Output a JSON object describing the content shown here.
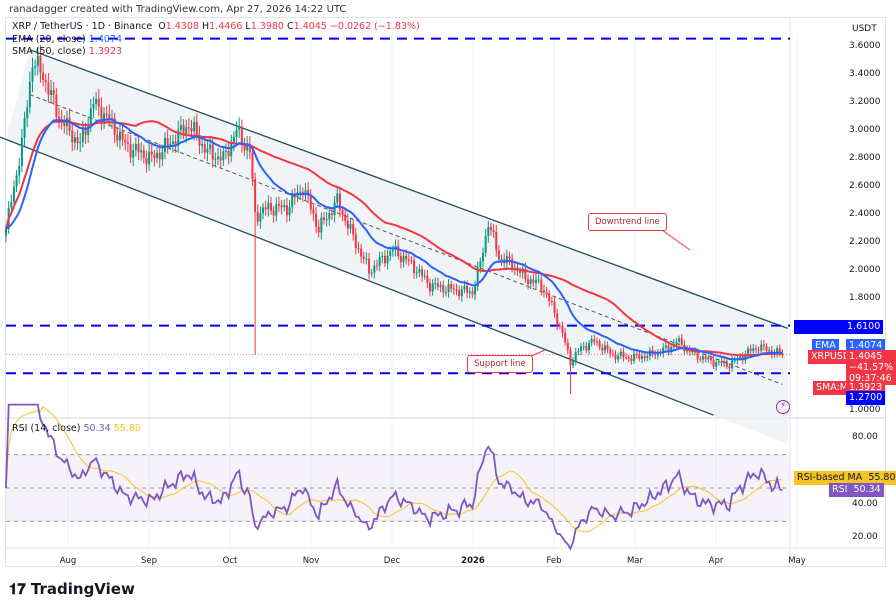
{
  "credit": "ranadagger created with TradingView.com, Apr 27, 2026 14:22 UTC",
  "header": {
    "symbol": "XRP / TetherUS · 1D · Binance",
    "open_label": "O",
    "open": "1.4308",
    "high_label": "H",
    "high": "1.4466",
    "low_label": "L",
    "low": "1.3980",
    "close_label": "C",
    "close": "1.4045",
    "change": "−0.0262 (−1.83%)"
  },
  "indicators": {
    "ema_label": "EMA (20, close)",
    "ema_value": "1.4074",
    "sma_label": "SMA (50, close)",
    "sma_value": "1.3923",
    "rsi_label": "RSI (14, close)",
    "rsi_value": "50.34",
    "rsi_ma_value": "55.80"
  },
  "price_axis": {
    "currency": "USDT",
    "ticks": [
      "3.6000",
      "3.4000",
      "3.2000",
      "3.0000",
      "2.8000",
      "2.6000",
      "2.4000",
      "2.2000",
      "2.0000",
      "1.8000",
      "1.0000"
    ]
  },
  "tags": {
    "level_high": "1.6100",
    "ema_tag": "EMA",
    "ema_val": "1.4074",
    "symbol_tag": "XRPUSDT",
    "last_price": "1.4045",
    "last_change": "−41.57%",
    "countdown": "09:37:46",
    "sma_tag": "SMA:MA",
    "sma_val": "1.3923",
    "level_low": "1.2700",
    "rsi_ma_tag": "RSI-based MA",
    "rsi_ma_val": "55.80",
    "rsi_tag": "RSI",
    "rsi_val": "50.34"
  },
  "rsi_axis": {
    "ticks": [
      "80.00",
      "40.00",
      "20.00"
    ]
  },
  "time_axis": [
    "Aug",
    "Sep",
    "Oct",
    "Nov",
    "Dec",
    "2026",
    "Feb",
    "Mar",
    "Apr",
    "May"
  ],
  "annotations": {
    "downtrend": "Downtrend line",
    "support": "Support line"
  },
  "brand": "TradingView",
  "colors": {
    "up": "#089981",
    "down": "#f23645",
    "ema": "#2962ff",
    "sma": "#f23645",
    "rsi": "#7e57c2",
    "rsi_ma": "#f7c325",
    "level": "#0000ff",
    "channel": "#1f4e5a"
  },
  "chart_data": {
    "type": "candlestick",
    "x_start": "2025-07-08",
    "x_end": "2026-04-27",
    "ylim": [
      1.0,
      3.66
    ],
    "price_keypoints": [
      [
        "2025-07-08",
        2.3
      ],
      [
        "2025-07-14",
        2.9
      ],
      [
        "2025-07-18",
        3.5
      ],
      [
        "2025-07-22",
        3.4
      ],
      [
        "2025-07-28",
        3.1
      ],
      [
        "2025-08-05",
        2.9
      ],
      [
        "2025-08-10",
        3.2
      ],
      [
        "2025-08-15",
        3.1
      ],
      [
        "2025-08-22",
        2.9
      ],
      [
        "2025-09-01",
        2.8
      ],
      [
        "2025-09-10",
        2.95
      ],
      [
        "2025-09-15",
        3.05
      ],
      [
        "2025-09-22",
        2.85
      ],
      [
        "2025-09-28",
        2.8
      ],
      [
        "2025-10-03",
        3.0
      ],
      [
        "2025-10-08",
        2.85
      ],
      [
        "2025-10-10",
        2.4
      ],
      [
        "2025-10-15",
        2.45
      ],
      [
        "2025-10-22",
        2.45
      ],
      [
        "2025-10-28",
        2.6
      ],
      [
        "2025-11-03",
        2.3
      ],
      [
        "2025-11-10",
        2.5
      ],
      [
        "2025-11-17",
        2.2
      ],
      [
        "2025-11-22",
        2.0
      ],
      [
        "2025-12-01",
        2.15
      ],
      [
        "2025-12-08",
        2.05
      ],
      [
        "2025-12-15",
        1.9
      ],
      [
        "2025-12-22",
        1.87
      ],
      [
        "2025-12-31",
        1.85
      ],
      [
        "2026-01-03",
        2.05
      ],
      [
        "2026-01-06",
        2.35
      ],
      [
        "2026-01-10",
        2.1
      ],
      [
        "2026-01-15",
        2.05
      ],
      [
        "2026-01-20",
        1.95
      ],
      [
        "2026-01-26",
        1.9
      ],
      [
        "2026-01-30",
        1.75
      ],
      [
        "2026-02-03",
        1.55
      ],
      [
        "2026-02-06",
        1.35
      ],
      [
        "2026-02-10",
        1.45
      ],
      [
        "2026-02-15",
        1.5
      ],
      [
        "2026-02-22",
        1.4
      ],
      [
        "2026-03-01",
        1.38
      ],
      [
        "2026-03-08",
        1.4
      ],
      [
        "2026-03-15",
        1.45
      ],
      [
        "2026-03-18",
        1.5
      ],
      [
        "2026-03-25",
        1.4
      ],
      [
        "2026-04-01",
        1.35
      ],
      [
        "2026-04-07",
        1.33
      ],
      [
        "2026-04-14",
        1.42
      ],
      [
        "2026-04-18",
        1.46
      ],
      [
        "2026-04-22",
        1.43
      ],
      [
        "2026-04-27",
        1.4045
      ]
    ],
    "wicks": [
      [
        "2025-10-10",
        1.4
      ],
      [
        "2026-02-06",
        1.12
      ]
    ],
    "horizontal_levels": [
      3.66,
      1.61,
      1.27
    ],
    "channel": {
      "upper": [
        [
          "2025-07-17",
          3.58
        ],
        [
          "2026-04-29",
          1.59
        ]
      ],
      "lower": [
        [
          "2025-07-08",
          2.94
        ],
        [
          "2026-04-01",
          0.97
        ]
      ],
      "mid": [
        [
          "2025-07-17",
          3.26
        ],
        [
          "2026-04-27",
          1.19
        ]
      ]
    },
    "rsi": {
      "ylim": [
        15,
        85
      ],
      "bands": [
        70,
        50,
        30
      ]
    }
  }
}
